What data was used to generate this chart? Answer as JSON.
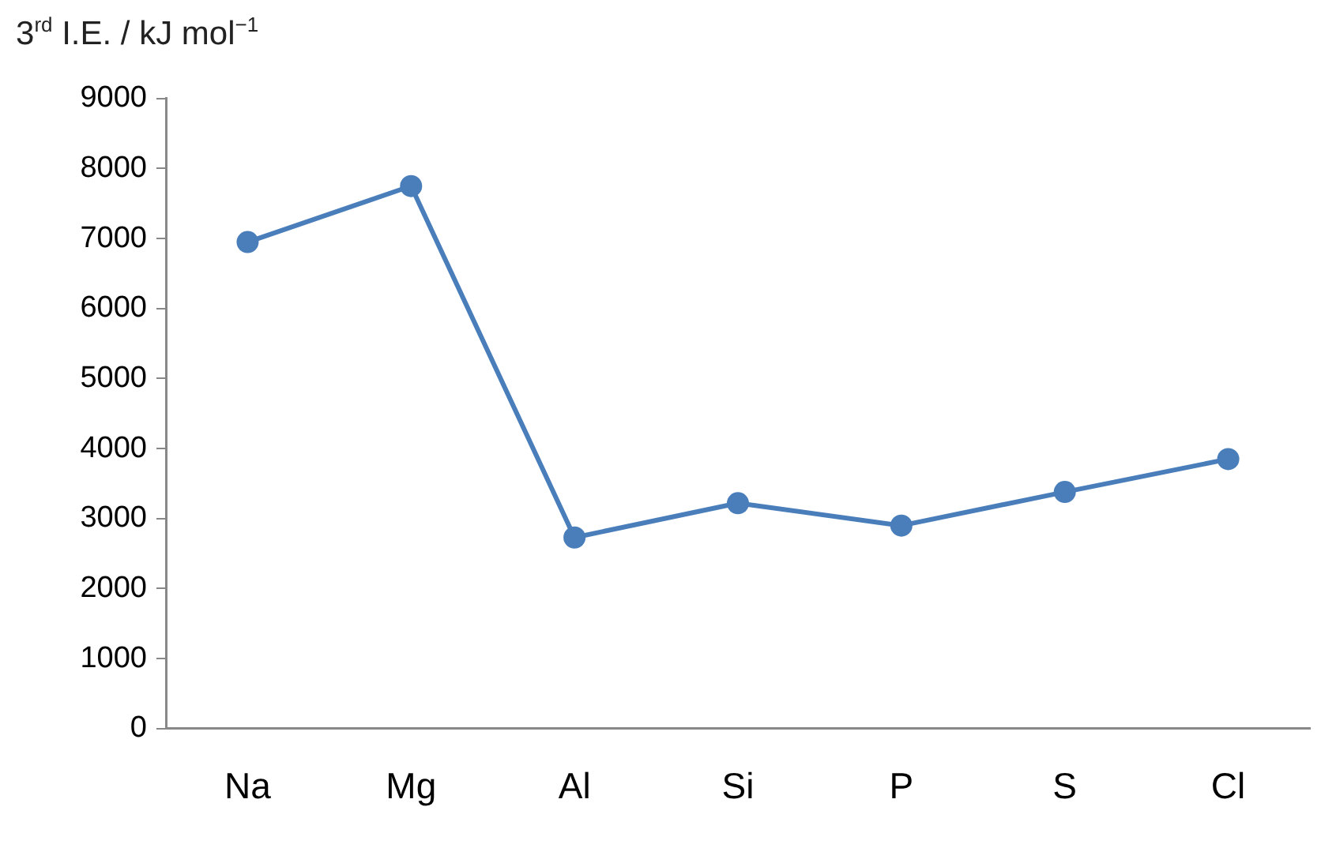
{
  "chart_data": {
    "type": "line",
    "ylabel": "3$^{rd}$ I.E. / kJ mol$^{−1}$",
    "categories": [
      "Na",
      "Mg",
      "Al",
      "Si",
      "P",
      "S",
      "Cl"
    ],
    "series": [
      {
        "color": "#4a7ebb",
        "values": [
          6950,
          7750,
          2730,
          3220,
          2900,
          3380,
          3850
        ]
      }
    ],
    "ylim": [
      0,
      9000
    ],
    "yticks": [
      0,
      1000,
      2000,
      3000,
      4000,
      5000,
      6000,
      7000,
      8000,
      9000
    ],
    "marker": "circle"
  }
}
